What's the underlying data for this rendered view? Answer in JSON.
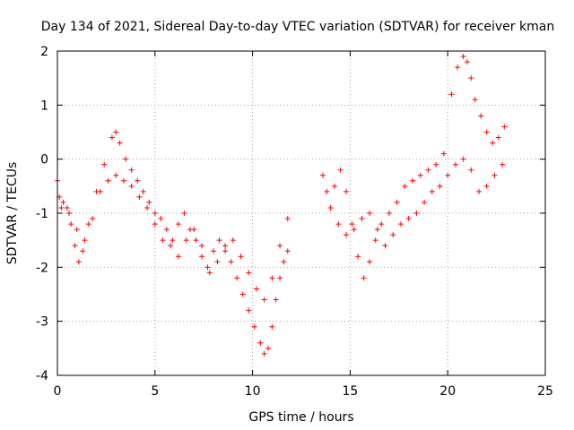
{
  "chart_data": {
    "type": "scatter",
    "title": "Day 134 of 2021, Sidereal Day-to-day VTEC variation (SDTVAR) for receiver kman",
    "xlabel": "GPS time / hours",
    "ylabel": "SDTVAR / TECUs",
    "xlim": [
      0,
      25
    ],
    "ylim": [
      -4,
      2
    ],
    "x_ticks": [
      0,
      5,
      10,
      15,
      20,
      25
    ],
    "y_ticks": [
      -4,
      -3,
      -2,
      -1,
      0,
      1,
      2
    ],
    "x_tick_labels": [
      "0",
      "5",
      "10",
      "15",
      "20",
      "25"
    ],
    "y_tick_labels": [
      "-4",
      "-3",
      "-2",
      "-1",
      "0",
      "1",
      "2"
    ],
    "grid": true,
    "marker": "plus",
    "color": "#ff0000",
    "series": [
      {
        "values_x": [
          0.0,
          0.1,
          0.3,
          0.5,
          0.7,
          0.9,
          1.1,
          1.3,
          1.6,
          2.0,
          2.4,
          2.8,
          3.0,
          3.2,
          3.5,
          3.8,
          4.1,
          4.4,
          4.7,
          5.0,
          5.3,
          5.6,
          5.9,
          6.2,
          6.5,
          6.8,
          7.1,
          7.4,
          7.7,
          8.0,
          8.3,
          8.6,
          8.9,
          9.2,
          9.5,
          9.8,
          10.1,
          10.4,
          10.6,
          10.8,
          11.0,
          11.2,
          11.4,
          11.6,
          11.8
        ],
        "values_y": [
          -0.4,
          -0.7,
          -0.8,
          -0.9,
          -1.2,
          -1.6,
          -1.9,
          -1.7,
          -1.2,
          -0.6,
          -0.1,
          0.4,
          0.5,
          0.3,
          0.0,
          -0.2,
          -0.4,
          -0.6,
          -0.8,
          -1.0,
          -1.1,
          -1.3,
          -1.5,
          -1.2,
          -1.0,
          -1.3,
          -1.5,
          -1.8,
          -2.0,
          -1.7,
          -1.5,
          -1.6,
          -1.9,
          -2.2,
          -2.5,
          -2.8,
          -3.1,
          -3.4,
          -3.6,
          -3.5,
          -3.1,
          -2.6,
          -2.2,
          -1.9,
          -1.7
        ]
      },
      {
        "values_x": [
          0.2,
          0.6,
          1.0,
          1.4,
          1.8,
          2.2,
          2.6,
          3.0,
          3.4,
          3.8,
          4.2,
          4.6,
          5.0,
          5.4,
          5.8,
          6.2,
          6.6,
          7.0,
          7.4,
          7.8,
          8.2,
          8.6,
          9.0,
          9.4,
          9.8,
          10.2,
          10.6,
          11.0,
          11.4,
          11.8
        ],
        "values_y": [
          -0.9,
          -1.0,
          -1.3,
          -1.5,
          -1.1,
          -0.6,
          -0.4,
          -0.3,
          -0.4,
          -0.5,
          -0.7,
          -0.9,
          -1.2,
          -1.5,
          -1.6,
          -1.8,
          -1.5,
          -1.3,
          -1.6,
          -2.1,
          -1.9,
          -1.7,
          -1.5,
          -1.8,
          -2.1,
          -2.4,
          -2.6,
          -2.2,
          -1.6,
          -1.1
        ]
      },
      {
        "values_x": [
          13.6,
          13.8,
          14.0,
          14.2,
          14.5,
          14.8,
          15.1,
          15.4,
          15.7,
          16.0,
          16.3,
          16.6,
          17.0,
          17.4,
          17.8,
          18.2,
          18.6,
          19.0,
          19.4,
          19.8,
          20.2,
          20.5,
          20.8,
          21.0,
          21.2,
          21.4,
          21.7,
          22.0,
          22.3,
          22.6,
          22.9
        ],
        "values_y": [
          -0.3,
          -0.6,
          -0.9,
          -0.5,
          -0.2,
          -0.6,
          -1.2,
          -1.8,
          -2.2,
          -1.9,
          -1.5,
          -1.2,
          -1.0,
          -0.8,
          -0.5,
          -0.4,
          -0.3,
          -0.2,
          -0.1,
          0.1,
          1.2,
          1.7,
          1.9,
          1.8,
          1.5,
          1.1,
          0.8,
          0.5,
          0.3,
          0.4,
          0.6
        ]
      },
      {
        "values_x": [
          14.0,
          14.4,
          14.8,
          15.2,
          15.6,
          16.0,
          16.4,
          16.8,
          17.2,
          17.6,
          18.0,
          18.4,
          18.8,
          19.2,
          19.6,
          20.0,
          20.4,
          20.8,
          21.2,
          21.6,
          22.0,
          22.4,
          22.8
        ],
        "values_y": [
          -0.9,
          -1.2,
          -1.4,
          -1.3,
          -1.1,
          -1.0,
          -1.3,
          -1.6,
          -1.4,
          -1.2,
          -1.1,
          -1.0,
          -0.8,
          -0.6,
          -0.5,
          -0.3,
          -0.1,
          0.0,
          -0.2,
          -0.6,
          -0.5,
          -0.3,
          -0.1
        ]
      }
    ]
  }
}
